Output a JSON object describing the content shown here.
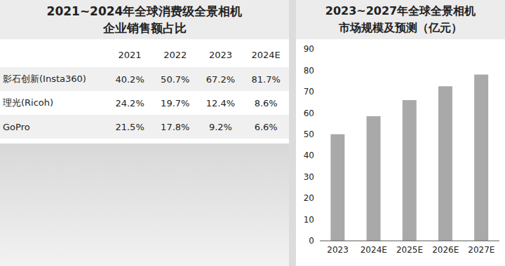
{
  "table": {
    "title": [
      "2021~2024年全球消费级全景相机",
      "企业销售额占比"
    ],
    "columns": [
      "",
      "2021",
      "2022",
      "2023",
      "2024E"
    ],
    "rows": [
      [
        "影石创新(Insta360)",
        "40.2%",
        "50.7%",
        "67.2%",
        "81.7%"
      ],
      [
        "理光(Ricoh)",
        "24.2%",
        "19.7%",
        "12.4%",
        "8.6%"
      ],
      [
        "GoPro",
        "21.5%",
        "17.8%",
        "9.2%",
        "6.6%"
      ]
    ]
  },
  "chart_data": {
    "type": "bar",
    "title": [
      "2023~2027年全球全景相机",
      "市场规模及预测（亿元）"
    ],
    "categories": [
      "2023",
      "2024E",
      "2025E",
      "2026E",
      "2027E"
    ],
    "values": [
      50,
      58.5,
      66,
      72.5,
      78
    ],
    "color": "#a9a9a9",
    "ylim": [
      0,
      90
    ],
    "yticks": [
      0,
      10,
      20,
      30,
      40,
      50,
      60,
      70,
      80,
      90
    ],
    "grid": false
  }
}
